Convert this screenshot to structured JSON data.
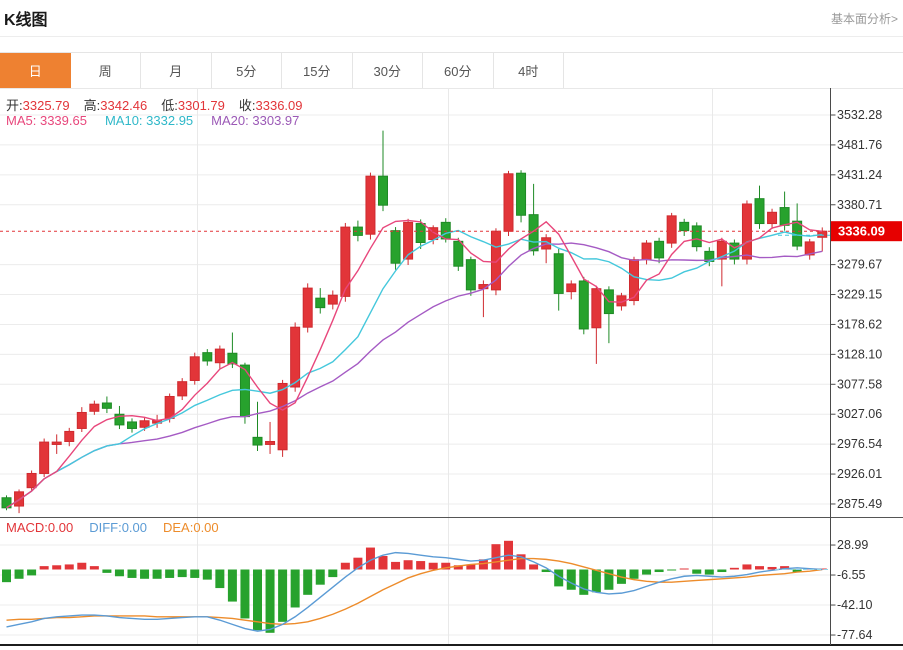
{
  "header": {
    "title": "K线图",
    "link": "基本面分析>"
  },
  "tabs": {
    "items": [
      "日",
      "周",
      "月",
      "5分",
      "15分",
      "30分",
      "60分",
      "4时"
    ],
    "selected": 0
  },
  "ohlc": {
    "open_label": "开:",
    "open": "3325.79",
    "high_label": "高:",
    "high": "3342.46",
    "low_label": "低:",
    "low": "3301.79",
    "close_label": "收:",
    "close": "3336.09"
  },
  "ma": {
    "ma5_label": "MA5:",
    "ma5": "3339.65",
    "ma10_label": "MA10:",
    "ma10": "3332.95",
    "ma20_label": "MA20:",
    "ma20": "3303.97"
  },
  "macd_header": {
    "macd": "MACD:0.00",
    "diff": "DIFF:0.00",
    "dea": "DEA:0.00"
  },
  "price_tag": "3336.09",
  "colors": {
    "up": "#e23539",
    "up_stroke": "#cf2a2f",
    "down": "#27a22d",
    "down_stroke": "#1e8a25",
    "ma5": "#e8477c",
    "ma10": "#45c8dc",
    "ma20": "#a55bc4",
    "diff_line": "#5b9bd5",
    "dea_line": "#ed8c2b",
    "grid": "#ececec",
    "vgrid": "#e9e9e9",
    "axis": "#555",
    "label": "#333",
    "dotted": "#e23539",
    "tag_bg": "#e60000",
    "tag_text": "#ffffff",
    "selected_tab": "#ee8131",
    "zero_dash": "#8fd4e8"
  },
  "chart_data": [
    {
      "type": "candlestick",
      "title": "K线图 (日)",
      "legend": [
        "MA5",
        "MA10",
        "MA20"
      ],
      "grid": true,
      "y_ticks": [
        3532.28,
        3481.76,
        3431.24,
        3380.71,
        3279.67,
        3229.15,
        3178.62,
        3128.1,
        3077.58,
        3027.06,
        2976.54,
        2926.01,
        2875.49
      ],
      "current_price": 3336.09,
      "ma_latest": {
        "ma5": 3339.65,
        "ma10": 3332.95,
        "ma20": 3303.97
      },
      "candles_format": [
        "open",
        "high",
        "low",
        "close"
      ],
      "candles": [
        [
          2886,
          2890,
          2865,
          2869
        ],
        [
          2872,
          2900,
          2860,
          2896
        ],
        [
          2903,
          2932,
          2898,
          2927
        ],
        [
          2927,
          2986,
          2921,
          2980
        ],
        [
          2976,
          2993,
          2960,
          2980
        ],
        [
          2981,
          3004,
          2973,
          2998
        ],
        [
          3003,
          3039,
          2997,
          3030
        ],
        [
          3032,
          3050,
          3026,
          3044
        ],
        [
          3046,
          3057,
          3029,
          3037
        ],
        [
          3027,
          3041,
          3002,
          3009
        ],
        [
          3014,
          3020,
          2996,
          3003
        ],
        [
          3005,
          3022,
          2999,
          3016
        ],
        [
          3012,
          3026,
          3004,
          3017
        ],
        [
          3020,
          3062,
          3013,
          3057
        ],
        [
          3058,
          3088,
          3051,
          3082
        ],
        [
          3084,
          3131,
          3077,
          3124
        ],
        [
          3131,
          3137,
          3109,
          3117
        ],
        [
          3114,
          3143,
          3104,
          3137
        ],
        [
          3130,
          3165,
          3105,
          3112
        ],
        [
          3110,
          3114,
          3011,
          3023
        ],
        [
          2988,
          3048,
          2965,
          2975
        ],
        [
          2976,
          3014,
          2960,
          2981
        ],
        [
          2967,
          3085,
          2955,
          3079
        ],
        [
          3073,
          3182,
          3065,
          3174
        ],
        [
          3174,
          3248,
          3165,
          3240
        ],
        [
          3223,
          3240,
          3197,
          3207
        ],
        [
          3213,
          3236,
          3204,
          3228
        ],
        [
          3226,
          3350,
          3217,
          3343
        ],
        [
          3343,
          3354,
          3319,
          3329
        ],
        [
          3331,
          3435,
          3322,
          3429
        ],
        [
          3429,
          3506,
          3370,
          3380
        ],
        [
          3337,
          3343,
          3271,
          3282
        ],
        [
          3289,
          3357,
          3279,
          3351
        ],
        [
          3349,
          3356,
          3306,
          3317
        ],
        [
          3322,
          3346,
          3314,
          3342
        ],
        [
          3351,
          3358,
          3317,
          3323
        ],
        [
          3319,
          3325,
          3269,
          3277
        ],
        [
          3288,
          3293,
          3227,
          3237
        ],
        [
          3239,
          3253,
          3191,
          3246
        ],
        [
          3237,
          3341,
          3228,
          3336
        ],
        [
          3336,
          3438,
          3328,
          3433
        ],
        [
          3434,
          3439,
          3351,
          3363
        ],
        [
          3364,
          3416,
          3295,
          3303
        ],
        [
          3306,
          3331,
          3282,
          3325
        ],
        [
          3298,
          3306,
          3202,
          3231
        ],
        [
          3234,
          3253,
          3221,
          3247
        ],
        [
          3252,
          3259,
          3162,
          3171
        ],
        [
          3173,
          3244,
          3112,
          3239
        ],
        [
          3237,
          3243,
          3147,
          3197
        ],
        [
          3210,
          3232,
          3202,
          3227
        ],
        [
          3219,
          3293,
          3211,
          3288
        ],
        [
          3288,
          3321,
          3280,
          3316
        ],
        [
          3319,
          3325,
          3282,
          3291
        ],
        [
          3316,
          3367,
          3308,
          3362
        ],
        [
          3351,
          3357,
          3328,
          3337
        ],
        [
          3345,
          3351,
          3302,
          3310
        ],
        [
          3302,
          3309,
          3277,
          3285
        ],
        [
          3289,
          3325,
          3243,
          3319
        ],
        [
          3316,
          3322,
          3280,
          3289
        ],
        [
          3289,
          3388,
          3280,
          3382
        ],
        [
          3391,
          3413,
          3340,
          3349
        ],
        [
          3349,
          3374,
          3340,
          3368
        ],
        [
          3376,
          3403,
          3337,
          3346
        ],
        [
          3353,
          3383,
          3304,
          3311
        ],
        [
          3296,
          3323,
          3288,
          3318
        ],
        [
          3325.79,
          3342.46,
          3301.79,
          3336.09
        ]
      ]
    },
    {
      "type": "bar",
      "title": "MACD",
      "legend": [
        "MACD",
        "DIFF",
        "DEA"
      ],
      "latest": {
        "macd": 0.0,
        "diff": 0.0,
        "dea": 0.0
      },
      "y_ticks": [
        28.99,
        -6.55,
        -42.1,
        -77.64
      ],
      "histogram": [
        -15,
        -11,
        -7,
        4,
        5,
        6,
        8,
        4,
        -4,
        -8,
        -10,
        -11,
        -11,
        -10,
        -9,
        -10,
        -12,
        -22,
        -38,
        -58,
        -72,
        -75,
        -62,
        -45,
        -30,
        -18,
        -9,
        8,
        14,
        26,
        16,
        9,
        11,
        10,
        8,
        8,
        5,
        6,
        12,
        30,
        34,
        18,
        6,
        -3,
        -20,
        -24,
        -30,
        -27,
        -24,
        -17,
        -11,
        -6,
        -3,
        -1,
        1,
        -5,
        -6,
        -3,
        2,
        6,
        4,
        3,
        4,
        -3,
        1,
        0
      ],
      "diff": [
        -68,
        -65,
        -62,
        -58,
        -56,
        -55,
        -54,
        -54,
        -55,
        -57,
        -58,
        -59,
        -59,
        -58,
        -57,
        -56,
        -56,
        -60,
        -65,
        -70,
        -73,
        -71,
        -65,
        -56,
        -45,
        -33,
        -21,
        -9,
        2,
        11,
        17,
        20,
        19,
        17,
        15,
        14,
        12,
        10,
        11,
        14,
        17,
        15,
        9,
        2,
        -8,
        -16,
        -23,
        -27,
        -29,
        -28,
        -25,
        -20,
        -15,
        -11,
        -8,
        -7,
        -8,
        -9,
        -8,
        -6,
        -3,
        -1,
        1,
        2,
        1,
        0
      ],
      "dea": [
        -60,
        -59,
        -59,
        -58,
        -57,
        -57,
        -56,
        -55,
        -55,
        -55,
        -55,
        -55,
        -56,
        -56,
        -56,
        -56,
        -56,
        -57,
        -58,
        -60,
        -62,
        -64,
        -65,
        -64,
        -62,
        -58,
        -53,
        -47,
        -40,
        -32,
        -24,
        -17,
        -10,
        -5,
        -1,
        2,
        4,
        6,
        7,
        9,
        11,
        13,
        13,
        12,
        10,
        7,
        3,
        -1,
        -5,
        -9,
        -12,
        -14,
        -15,
        -15,
        -14,
        -13,
        -12,
        -11,
        -10,
        -9,
        -7,
        -6,
        -5,
        -3,
        -2,
        0
      ]
    }
  ]
}
